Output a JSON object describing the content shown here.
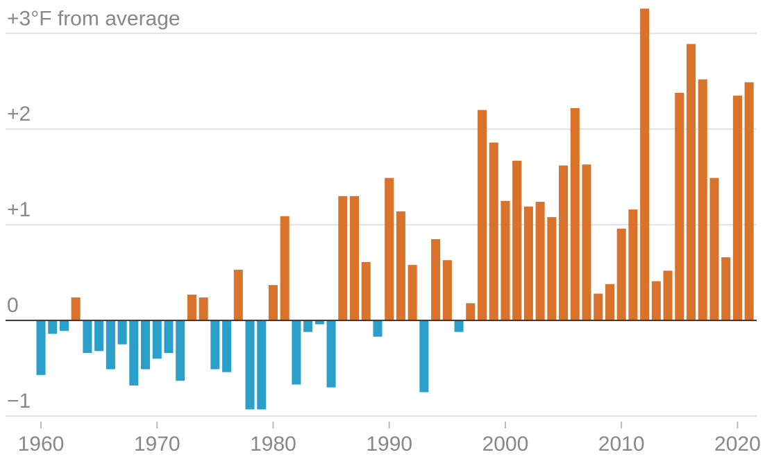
{
  "chart_data": {
    "type": "bar",
    "x": [
      1960,
      1961,
      1962,
      1963,
      1964,
      1965,
      1966,
      1967,
      1968,
      1969,
      1970,
      1971,
      1972,
      1973,
      1974,
      1975,
      1976,
      1977,
      1978,
      1979,
      1980,
      1981,
      1982,
      1983,
      1984,
      1985,
      1986,
      1987,
      1988,
      1989,
      1990,
      1991,
      1992,
      1993,
      1994,
      1995,
      1996,
      1997,
      1998,
      1999,
      2000,
      2001,
      2002,
      2003,
      2004,
      2005,
      2006,
      2007,
      2008,
      2009,
      2010,
      2011,
      2012,
      2013,
      2014,
      2015,
      2016,
      2017,
      2018,
      2019,
      2020,
      2021
    ],
    "values": [
      -0.57,
      -0.14,
      -0.11,
      0.24,
      -0.34,
      -0.32,
      -0.51,
      -0.25,
      -0.68,
      -0.51,
      -0.4,
      -0.34,
      -0.63,
      0.27,
      0.24,
      -0.51,
      -0.54,
      0.53,
      -0.93,
      -0.93,
      0.37,
      1.09,
      -0.67,
      -0.12,
      -0.04,
      -0.7,
      1.3,
      1.3,
      0.61,
      -0.17,
      1.49,
      1.14,
      0.58,
      -0.75,
      0.85,
      0.63,
      -0.12,
      0.18,
      2.2,
      1.86,
      1.25,
      1.67,
      1.19,
      1.24,
      1.08,
      1.62,
      2.22,
      1.63,
      0.28,
      0.38,
      0.96,
      1.16,
      3.26,
      0.41,
      0.52,
      2.38,
      2.89,
      2.52,
      1.49,
      0.66,
      2.35,
      2.49
    ],
    "positive_color": "#d9722b",
    "negative_color": "#2a9fc9",
    "xlim": [
      1956.95,
      2021.65
    ],
    "xticks": [
      1960,
      1970,
      1980,
      1990,
      2000,
      2010,
      2020
    ],
    "ylim": [
      -1.05,
      3.35
    ],
    "yticks": [
      {
        "value": -1,
        "label": "−1"
      },
      0,
      {
        "value": 1,
        "label": "+1"
      },
      {
        "value": 2,
        "label": "+2"
      },
      {
        "value": 3,
        "label": "+3°F from average"
      }
    ],
    "grid": true
  }
}
